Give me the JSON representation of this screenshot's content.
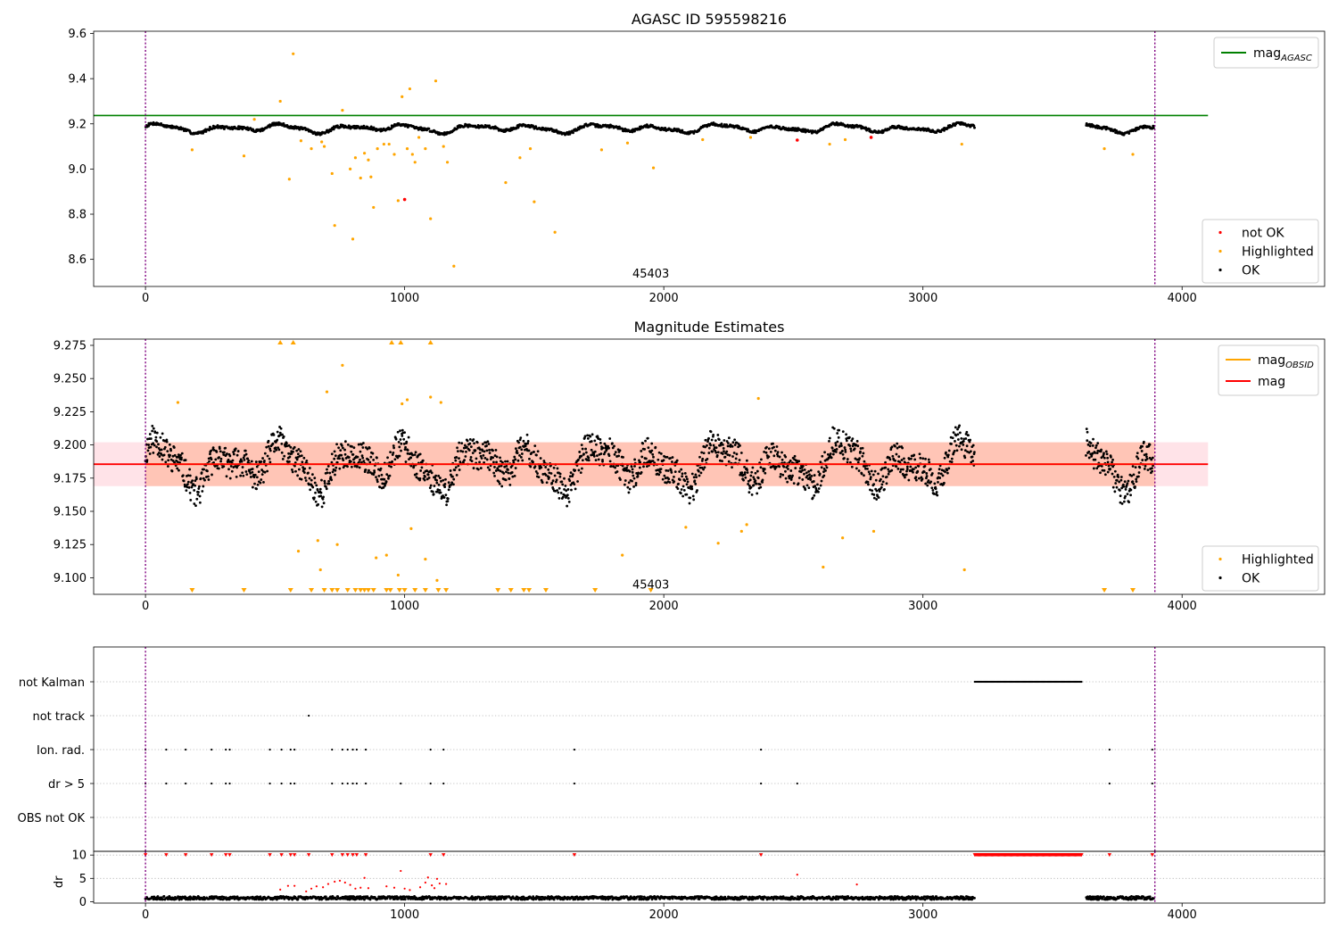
{
  "chart_data": [
    {
      "type": "scatter",
      "title": "AGASC ID 595598216",
      "xlim": [
        -200,
        4550
      ],
      "ylim": [
        8.48,
        9.61
      ],
      "xticks": [
        0,
        1000,
        2000,
        3000,
        4000
      ],
      "yticks": [
        8.6,
        8.8,
        9.0,
        9.2,
        9.4,
        9.6
      ],
      "ytick_labels": [
        "8.6",
        "8.8",
        "9.0",
        "9.2",
        "9.4",
        "9.6"
      ],
      "vlines": [
        0,
        3895
      ],
      "annotation": {
        "text": "45403",
        "x": 1950,
        "y": 8.52
      },
      "reference_lines": [
        {
          "name": "mag",
          "name_sub": "AGASC",
          "y": 9.237,
          "xrange": [
            -200,
            4100
          ],
          "color": "#008000"
        }
      ],
      "baseline": {
        "segments": [
          [
            0,
            3200
          ],
          [
            3630,
            3890
          ]
        ],
        "mean": 9.18
      },
      "not_ok_points": [
        [
          1000,
          8.865
        ],
        [
          2515,
          9.128
        ],
        [
          2800,
          9.14
        ]
      ],
      "highlighted_points": [
        [
          180,
          9.085
        ],
        [
          380,
          9.058
        ],
        [
          420,
          9.22
        ],
        [
          520,
          9.3
        ],
        [
          555,
          8.955
        ],
        [
          570,
          9.51
        ],
        [
          600,
          9.125
        ],
        [
          640,
          9.09
        ],
        [
          680,
          9.12
        ],
        [
          690,
          9.1
        ],
        [
          720,
          8.98
        ],
        [
          730,
          8.75
        ],
        [
          760,
          9.26
        ],
        [
          790,
          9.0
        ],
        [
          800,
          8.69
        ],
        [
          810,
          9.05
        ],
        [
          830,
          8.96
        ],
        [
          845,
          9.07
        ],
        [
          860,
          9.04
        ],
        [
          870,
          8.965
        ],
        [
          880,
          8.83
        ],
        [
          895,
          9.09
        ],
        [
          920,
          9.11
        ],
        [
          940,
          9.11
        ],
        [
          960,
          9.065
        ],
        [
          975,
          8.86
        ],
        [
          990,
          9.32
        ],
        [
          1010,
          9.09
        ],
        [
          1020,
          9.355
        ],
        [
          1030,
          9.065
        ],
        [
          1040,
          9.03
        ],
        [
          1055,
          9.14
        ],
        [
          1080,
          9.09
        ],
        [
          1100,
          8.78
        ],
        [
          1120,
          9.39
        ],
        [
          1150,
          9.1
        ],
        [
          1165,
          9.03
        ],
        [
          1190,
          8.57
        ],
        [
          1390,
          8.94
        ],
        [
          1445,
          9.05
        ],
        [
          1485,
          9.09
        ],
        [
          1500,
          8.855
        ],
        [
          1580,
          8.72
        ],
        [
          1760,
          9.085
        ],
        [
          1860,
          9.115
        ],
        [
          1960,
          9.005
        ],
        [
          2150,
          9.13
        ],
        [
          2335,
          9.14
        ],
        [
          2640,
          9.11
        ],
        [
          2700,
          9.13
        ],
        [
          3150,
          9.11
        ],
        [
          3700,
          9.09
        ],
        [
          3810,
          9.065
        ]
      ]
    },
    {
      "type": "scatter",
      "title": "Magnitude Estimates",
      "xlim": [
        -200,
        4550
      ],
      "ylim": [
        9.0875,
        9.2797
      ],
      "xticks": [
        0,
        1000,
        2000,
        3000,
        4000
      ],
      "yticks": [
        9.1,
        9.125,
        9.15,
        9.175,
        9.2,
        9.225,
        9.25,
        9.275
      ],
      "ytick_labels": [
        "9.100",
        "9.125",
        "9.150",
        "9.175",
        "9.200",
        "9.225",
        "9.250",
        "9.275"
      ],
      "vlines": [
        0,
        3895
      ],
      "annotation": {
        "text": "45403",
        "x": 1950,
        "y": 9.092
      },
      "reference_lines": [
        {
          "name": "mag",
          "name_sub": "OBSID",
          "y": 9.1855,
          "xrange": [
            0,
            3895
          ],
          "color": "#ffa500"
        },
        {
          "name": "mag",
          "name_sub": "",
          "y": 9.1855,
          "xrange": [
            -200,
            4100
          ],
          "color": "#ff0000"
        }
      ],
      "bands": [
        {
          "y0": 9.169,
          "y1": 9.202,
          "xrange": [
            -200,
            4100
          ],
          "color": "#ffc0cb"
        },
        {
          "y0": 9.169,
          "y1": 9.202,
          "xrange": [
            0,
            3895
          ],
          "color": "#ffa07a"
        }
      ],
      "baseline": {
        "segments": [
          [
            0,
            3200
          ],
          [
            3630,
            3890
          ]
        ],
        "mean": 9.185
      },
      "highlighted_points": [
        [
          125,
          9.232
        ],
        [
          700,
          9.24
        ],
        [
          760,
          9.26
        ],
        [
          990,
          9.231
        ],
        [
          1010,
          9.234
        ],
        [
          1100,
          9.236
        ],
        [
          1140,
          9.232
        ],
        [
          2365,
          9.235
        ],
        [
          590,
          9.12
        ],
        [
          665,
          9.128
        ],
        [
          675,
          9.106
        ],
        [
          740,
          9.125
        ],
        [
          890,
          9.115
        ],
        [
          930,
          9.117
        ],
        [
          975,
          9.102
        ],
        [
          1025,
          9.137
        ],
        [
          1080,
          9.114
        ],
        [
          1125,
          9.098
        ],
        [
          1840,
          9.117
        ],
        [
          2085,
          9.138
        ],
        [
          2210,
          9.126
        ],
        [
          2300,
          9.135
        ],
        [
          2320,
          9.14
        ],
        [
          2615,
          9.108
        ],
        [
          2690,
          9.13
        ],
        [
          2810,
          9.135
        ],
        [
          3160,
          9.106
        ]
      ],
      "overflow_high_x": [
        520,
        570,
        950,
        985,
        1100
      ],
      "overflow_low_x": [
        180,
        380,
        560,
        640,
        690,
        720,
        740,
        780,
        810,
        830,
        845,
        860,
        880,
        930,
        945,
        980,
        1000,
        1040,
        1080,
        1130,
        1160,
        1360,
        1410,
        1460,
        1480,
        1545,
        1735,
        1950,
        3700,
        3810
      ]
    },
    {
      "type": "scatter",
      "title": "",
      "xlim": [
        -200,
        4550
      ],
      "xticks": [
        0,
        1000,
        2000,
        3000,
        4000
      ],
      "vlines": [
        0,
        3895
      ],
      "categories": [
        "not Kalman",
        "not track",
        "Ion. rad.",
        "dr > 5",
        "OBS not OK"
      ],
      "flags": {
        "not Kalman": {
          "ranges": [
            [
              3200,
              3615
            ]
          ],
          "points": []
        },
        "not track": {
          "ranges": [],
          "points": [
            630
          ]
        },
        "Ion. rad.": {
          "ranges": [],
          "points": [
            0,
            80,
            155,
            255,
            310,
            325,
            480,
            525,
            560,
            575,
            720,
            760,
            780,
            800,
            815,
            850,
            1100,
            1150,
            1655,
            2375,
            3720,
            3885
          ]
        },
        "dr > 5": {
          "ranges": [],
          "points": [
            0,
            80,
            155,
            255,
            310,
            325,
            480,
            525,
            560,
            575,
            720,
            760,
            780,
            800,
            815,
            850,
            985,
            1100,
            1150,
            1655,
            2375,
            2515,
            3720,
            3885
          ]
        },
        "OBS not OK": {
          "ranges": [],
          "points": []
        }
      }
    },
    {
      "type": "scatter",
      "title": "",
      "ylabel": "dr",
      "xlim": [
        -200,
        4550
      ],
      "ylim": [
        -0.3,
        10.8
      ],
      "xticks": [
        0,
        1000,
        2000,
        3000,
        4000
      ],
      "yticks": [
        0,
        5,
        10
      ],
      "ytick_labels": [
        "0",
        "5",
        "10"
      ],
      "vlines": [
        0,
        3895
      ],
      "baseline": {
        "segments": [
          [
            0,
            3200
          ],
          [
            3630,
            3890
          ]
        ],
        "mean": 0.8
      },
      "capped_value": 10,
      "capped_x": [
        0,
        80,
        155,
        255,
        310,
        325,
        480,
        525,
        560,
        575,
        630,
        720,
        760,
        780,
        800,
        815,
        850,
        1100,
        1150,
        1655,
        2375,
        3720,
        3885
      ],
      "capped_ranges": [
        [
          3200,
          3615
        ]
      ],
      "high_points": [
        [
          520,
          2.6
        ],
        [
          550,
          3.4
        ],
        [
          575,
          3.4
        ],
        [
          620,
          2.2
        ],
        [
          640,
          2.8
        ],
        [
          660,
          3.3
        ],
        [
          685,
          3.1
        ],
        [
          705,
          3.8
        ],
        [
          730,
          4.3
        ],
        [
          750,
          4.5
        ],
        [
          770,
          4.1
        ],
        [
          790,
          3.6
        ],
        [
          810,
          2.8
        ],
        [
          830,
          3.0
        ],
        [
          845,
          5.1
        ],
        [
          860,
          2.9
        ],
        [
          930,
          3.3
        ],
        [
          960,
          3.0
        ],
        [
          985,
          6.6
        ],
        [
          1000,
          2.8
        ],
        [
          1020,
          2.5
        ],
        [
          1060,
          3.1
        ],
        [
          1080,
          4.1
        ],
        [
          1090,
          5.2
        ],
        [
          1105,
          3.5
        ],
        [
          1115,
          2.9
        ],
        [
          1125,
          4.9
        ],
        [
          1135,
          3.9
        ],
        [
          1160,
          3.8
        ],
        [
          2515,
          5.8
        ],
        [
          2745,
          3.7
        ]
      ]
    }
  ],
  "legends": [
    {
      "items": [
        {
          "label": "mag",
          "sub": "AGASC",
          "kind": "line",
          "color": "#008000"
        }
      ],
      "placement": "upper right"
    },
    {
      "items": [
        {
          "label": "not OK",
          "kind": "dot",
          "color": "#ff0000"
        },
        {
          "label": "Highlighted",
          "kind": "dot",
          "color": "#ffa500"
        },
        {
          "label": "OK",
          "kind": "dot",
          "color": "#000000"
        }
      ],
      "placement": "lower right"
    },
    {
      "items": [
        {
          "label": "mag",
          "sub": "OBSID",
          "kind": "line",
          "color": "#ffa500"
        },
        {
          "label": "mag",
          "sub": "",
          "kind": "line",
          "color": "#ff0000"
        }
      ],
      "placement": "upper right"
    },
    {
      "items": [
        {
          "label": "Highlighted",
          "kind": "dot",
          "color": "#ffa500"
        },
        {
          "label": "OK",
          "kind": "dot",
          "color": "#000000"
        }
      ],
      "placement": "lower right"
    }
  ]
}
